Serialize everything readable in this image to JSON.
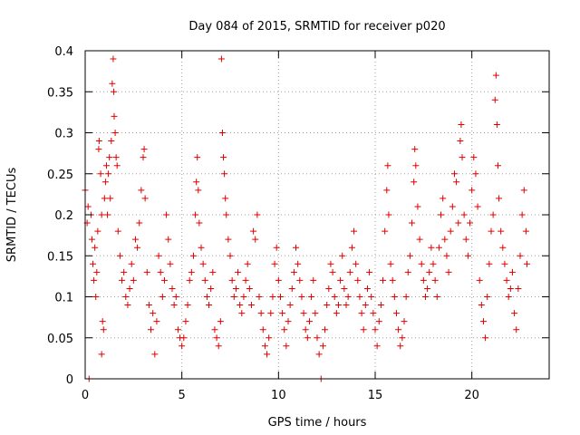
{
  "chart_data": {
    "type": "scatter",
    "title": "Day 084 of 2015, SRMTID for receiver p020",
    "xlabel": "GPS time / hours",
    "ylabel": "SRMTID / TECUs",
    "xlim": [
      0,
      24
    ],
    "ylim": [
      0,
      0.4
    ],
    "x_ticks": [
      0,
      5,
      10,
      15,
      20
    ],
    "x_tick_labels": [
      "0",
      "5",
      "10",
      "15",
      "20"
    ],
    "y_ticks": [
      0,
      0.05,
      0.1,
      0.15,
      0.2,
      0.25,
      0.3,
      0.35,
      0.4
    ],
    "y_tick_labels": [
      "0",
      "0.05",
      "0.1",
      "0.15",
      "0.2",
      "0.25",
      "0.3",
      "0.35",
      "0.4"
    ],
    "grid": true,
    "marker": "plus",
    "color": "#e00000",
    "series": [
      {
        "name": "SRMTID",
        "points": [
          [
            0.0,
            0.23
          ],
          [
            0.1,
            0.19
          ],
          [
            0.15,
            0.21
          ],
          [
            0.2,
            0.0
          ],
          [
            0.3,
            0.2
          ],
          [
            0.35,
            0.17
          ],
          [
            0.4,
            0.14
          ],
          [
            0.45,
            0.12
          ],
          [
            0.5,
            0.16
          ],
          [
            0.55,
            0.1
          ],
          [
            0.6,
            0.13
          ],
          [
            0.65,
            0.18
          ],
          [
            0.7,
            0.28
          ],
          [
            0.72,
            0.29
          ],
          [
            0.8,
            0.25
          ],
          [
            0.85,
            0.2
          ],
          [
            0.9,
            0.07
          ],
          [
            0.95,
            0.06
          ],
          [
            0.85,
            0.03
          ],
          [
            1.0,
            0.22
          ],
          [
            1.05,
            0.24
          ],
          [
            1.1,
            0.26
          ],
          [
            1.15,
            0.2
          ],
          [
            1.2,
            0.25
          ],
          [
            1.25,
            0.27
          ],
          [
            1.3,
            0.22
          ],
          [
            1.35,
            0.29
          ],
          [
            1.4,
            0.36
          ],
          [
            1.45,
            0.39
          ],
          [
            1.48,
            0.35
          ],
          [
            1.5,
            0.32
          ],
          [
            1.55,
            0.3
          ],
          [
            1.6,
            0.27
          ],
          [
            1.65,
            0.26
          ],
          [
            1.7,
            0.18
          ],
          [
            1.8,
            0.15
          ],
          [
            1.9,
            0.12
          ],
          [
            2.0,
            0.13
          ],
          [
            2.1,
            0.1
          ],
          [
            2.2,
            0.09
          ],
          [
            2.3,
            0.11
          ],
          [
            2.4,
            0.14
          ],
          [
            2.5,
            0.12
          ],
          [
            2.6,
            0.17
          ],
          [
            2.7,
            0.16
          ],
          [
            2.8,
            0.19
          ],
          [
            2.9,
            0.23
          ],
          [
            3.0,
            0.27
          ],
          [
            3.05,
            0.28
          ],
          [
            3.1,
            0.22
          ],
          [
            3.2,
            0.13
          ],
          [
            3.3,
            0.09
          ],
          [
            3.4,
            0.06
          ],
          [
            3.5,
            0.08
          ],
          [
            3.6,
            0.03
          ],
          [
            3.7,
            0.07
          ],
          [
            3.8,
            0.15
          ],
          [
            3.9,
            0.13
          ],
          [
            4.0,
            0.1
          ],
          [
            4.1,
            0.12
          ],
          [
            4.2,
            0.2
          ],
          [
            4.3,
            0.17
          ],
          [
            4.4,
            0.14
          ],
          [
            4.5,
            0.11
          ],
          [
            4.6,
            0.09
          ],
          [
            4.7,
            0.1
          ],
          [
            4.8,
            0.06
          ],
          [
            4.9,
            0.05
          ],
          [
            5.0,
            0.04
          ],
          [
            5.1,
            0.05
          ],
          [
            5.2,
            0.07
          ],
          [
            5.3,
            0.09
          ],
          [
            5.4,
            0.12
          ],
          [
            5.5,
            0.13
          ],
          [
            5.6,
            0.15
          ],
          [
            5.7,
            0.2
          ],
          [
            5.75,
            0.24
          ],
          [
            5.8,
            0.27
          ],
          [
            5.85,
            0.23
          ],
          [
            5.9,
            0.19
          ],
          [
            6.0,
            0.16
          ],
          [
            6.1,
            0.14
          ],
          [
            6.2,
            0.12
          ],
          [
            6.3,
            0.1
          ],
          [
            6.4,
            0.09
          ],
          [
            6.5,
            0.11
          ],
          [
            6.6,
            0.13
          ],
          [
            6.7,
            0.06
          ],
          [
            6.8,
            0.05
          ],
          [
            6.9,
            0.04
          ],
          [
            7.0,
            0.07
          ],
          [
            7.05,
            0.39
          ],
          [
            7.1,
            0.3
          ],
          [
            7.15,
            0.27
          ],
          [
            7.2,
            0.25
          ],
          [
            7.25,
            0.22
          ],
          [
            7.3,
            0.2
          ],
          [
            7.4,
            0.17
          ],
          [
            7.5,
            0.15
          ],
          [
            7.6,
            0.12
          ],
          [
            7.7,
            0.1
          ],
          [
            7.8,
            0.11
          ],
          [
            7.9,
            0.13
          ],
          [
            8.0,
            0.09
          ],
          [
            8.1,
            0.08
          ],
          [
            8.2,
            0.1
          ],
          [
            8.3,
            0.12
          ],
          [
            8.4,
            0.14
          ],
          [
            8.5,
            0.11
          ],
          [
            8.6,
            0.09
          ],
          [
            8.7,
            0.18
          ],
          [
            8.8,
            0.17
          ],
          [
            8.9,
            0.2
          ],
          [
            9.0,
            0.1
          ],
          [
            9.1,
            0.08
          ],
          [
            9.2,
            0.06
          ],
          [
            9.3,
            0.04
          ],
          [
            9.4,
            0.03
          ],
          [
            9.5,
            0.05
          ],
          [
            9.6,
            0.08
          ],
          [
            9.7,
            0.1
          ],
          [
            9.8,
            0.14
          ],
          [
            9.9,
            0.16
          ],
          [
            10.0,
            0.12
          ],
          [
            10.1,
            0.1
          ],
          [
            10.2,
            0.08
          ],
          [
            10.3,
            0.06
          ],
          [
            10.4,
            0.04
          ],
          [
            10.5,
            0.07
          ],
          [
            10.6,
            0.09
          ],
          [
            10.7,
            0.11
          ],
          [
            10.8,
            0.13
          ],
          [
            10.9,
            0.16
          ],
          [
            11.0,
            0.14
          ],
          [
            11.1,
            0.12
          ],
          [
            11.2,
            0.1
          ],
          [
            11.3,
            0.08
          ],
          [
            11.4,
            0.06
          ],
          [
            11.5,
            0.05
          ],
          [
            11.6,
            0.07
          ],
          [
            11.7,
            0.1
          ],
          [
            11.8,
            0.12
          ],
          [
            11.9,
            0.08
          ],
          [
            12.0,
            0.05
          ],
          [
            12.1,
            0.03
          ],
          [
            12.2,
            0.0
          ],
          [
            12.3,
            0.04
          ],
          [
            12.4,
            0.06
          ],
          [
            12.5,
            0.09
          ],
          [
            12.6,
            0.11
          ],
          [
            12.7,
            0.14
          ],
          [
            12.8,
            0.13
          ],
          [
            12.9,
            0.1
          ],
          [
            13.0,
            0.08
          ],
          [
            13.1,
            0.09
          ],
          [
            13.2,
            0.12
          ],
          [
            13.3,
            0.15
          ],
          [
            13.4,
            0.11
          ],
          [
            13.5,
            0.09
          ],
          [
            13.6,
            0.1
          ],
          [
            13.7,
            0.13
          ],
          [
            13.8,
            0.16
          ],
          [
            13.9,
            0.18
          ],
          [
            14.0,
            0.14
          ],
          [
            14.1,
            0.12
          ],
          [
            14.2,
            0.1
          ],
          [
            14.3,
            0.08
          ],
          [
            14.4,
            0.06
          ],
          [
            14.5,
            0.09
          ],
          [
            14.6,
            0.11
          ],
          [
            14.7,
            0.13
          ],
          [
            14.8,
            0.1
          ],
          [
            14.9,
            0.08
          ],
          [
            15.0,
            0.06
          ],
          [
            15.1,
            0.04
          ],
          [
            15.2,
            0.07
          ],
          [
            15.3,
            0.09
          ],
          [
            15.4,
            0.12
          ],
          [
            15.5,
            0.18
          ],
          [
            15.6,
            0.23
          ],
          [
            15.65,
            0.26
          ],
          [
            15.7,
            0.2
          ],
          [
            15.8,
            0.14
          ],
          [
            15.9,
            0.12
          ],
          [
            16.0,
            0.1
          ],
          [
            16.1,
            0.08
          ],
          [
            16.2,
            0.06
          ],
          [
            16.3,
            0.04
          ],
          [
            16.4,
            0.05
          ],
          [
            16.5,
            0.07
          ],
          [
            16.6,
            0.1
          ],
          [
            16.7,
            0.13
          ],
          [
            16.8,
            0.15
          ],
          [
            16.9,
            0.19
          ],
          [
            17.0,
            0.24
          ],
          [
            17.05,
            0.28
          ],
          [
            17.1,
            0.26
          ],
          [
            17.2,
            0.21
          ],
          [
            17.3,
            0.17
          ],
          [
            17.4,
            0.14
          ],
          [
            17.5,
            0.12
          ],
          [
            17.6,
            0.1
          ],
          [
            17.7,
            0.11
          ],
          [
            17.8,
            0.13
          ],
          [
            17.9,
            0.16
          ],
          [
            18.0,
            0.14
          ],
          [
            18.1,
            0.12
          ],
          [
            18.2,
            0.1
          ],
          [
            18.3,
            0.16
          ],
          [
            18.4,
            0.2
          ],
          [
            18.5,
            0.22
          ],
          [
            18.6,
            0.17
          ],
          [
            18.7,
            0.15
          ],
          [
            18.8,
            0.13
          ],
          [
            18.9,
            0.18
          ],
          [
            19.0,
            0.21
          ],
          [
            19.1,
            0.25
          ],
          [
            19.2,
            0.24
          ],
          [
            19.3,
            0.19
          ],
          [
            19.4,
            0.29
          ],
          [
            19.45,
            0.31
          ],
          [
            19.5,
            0.27
          ],
          [
            19.6,
            0.2
          ],
          [
            19.7,
            0.17
          ],
          [
            19.8,
            0.15
          ],
          [
            19.9,
            0.19
          ],
          [
            20.0,
            0.23
          ],
          [
            20.1,
            0.27
          ],
          [
            20.2,
            0.25
          ],
          [
            20.3,
            0.21
          ],
          [
            20.4,
            0.12
          ],
          [
            20.5,
            0.09
          ],
          [
            20.6,
            0.07
          ],
          [
            20.7,
            0.05
          ],
          [
            20.8,
            0.1
          ],
          [
            20.9,
            0.14
          ],
          [
            21.0,
            0.18
          ],
          [
            21.1,
            0.2
          ],
          [
            21.2,
            0.34
          ],
          [
            21.25,
            0.37
          ],
          [
            21.3,
            0.31
          ],
          [
            21.35,
            0.26
          ],
          [
            21.4,
            0.22
          ],
          [
            21.5,
            0.18
          ],
          [
            21.6,
            0.16
          ],
          [
            21.7,
            0.14
          ],
          [
            21.8,
            0.12
          ],
          [
            21.9,
            0.1
          ],
          [
            22.0,
            0.11
          ],
          [
            22.1,
            0.13
          ],
          [
            22.2,
            0.08
          ],
          [
            22.3,
            0.06
          ],
          [
            22.4,
            0.11
          ],
          [
            22.5,
            0.15
          ],
          [
            22.6,
            0.2
          ],
          [
            22.7,
            0.23
          ],
          [
            22.8,
            0.18
          ],
          [
            22.85,
            0.14
          ]
        ]
      }
    ]
  }
}
